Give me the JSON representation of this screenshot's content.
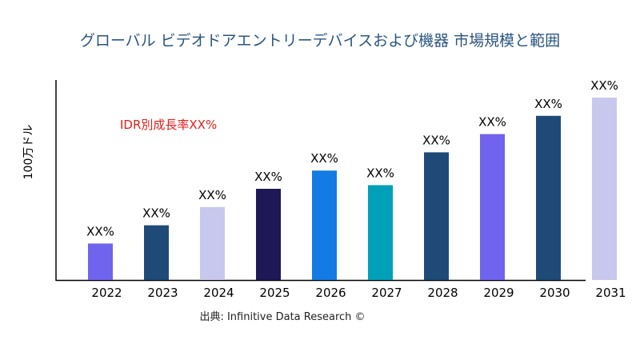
{
  "chart_data": {
    "type": "bar",
    "title": "グローバル ビデオドアエントリーデバイスおよび機器 市場規模と範囲",
    "ylabel": "100万ドル",
    "xlabel": "",
    "annotation": "IDR別成長率XX%",
    "source": "出典: Infinitive Data Research ©",
    "categories": [
      "2022",
      "2023",
      "2024",
      "2025",
      "2026",
      "2027",
      "2028",
      "2029",
      "2030",
      "2031"
    ],
    "values": [
      20,
      30,
      40,
      50,
      60,
      52,
      70,
      80,
      90,
      100
    ],
    "data_labels": [
      "XX%",
      "XX%",
      "XX%",
      "XX%",
      "XX%",
      "XX%",
      "XX%",
      "XX%",
      "XX%",
      "XX%"
    ],
    "colors": [
      "#7063ee",
      "#1f4a78",
      "#c8c8ee",
      "#1e1856",
      "#137be3",
      "#00a0b8",
      "#1f4a78",
      "#7063ee",
      "#1f4a78",
      "#c8c8ee"
    ],
    "ylim": [
      0,
      100
    ],
    "grid": false,
    "legend": "none",
    "annotation_color": "#e0201c"
  }
}
